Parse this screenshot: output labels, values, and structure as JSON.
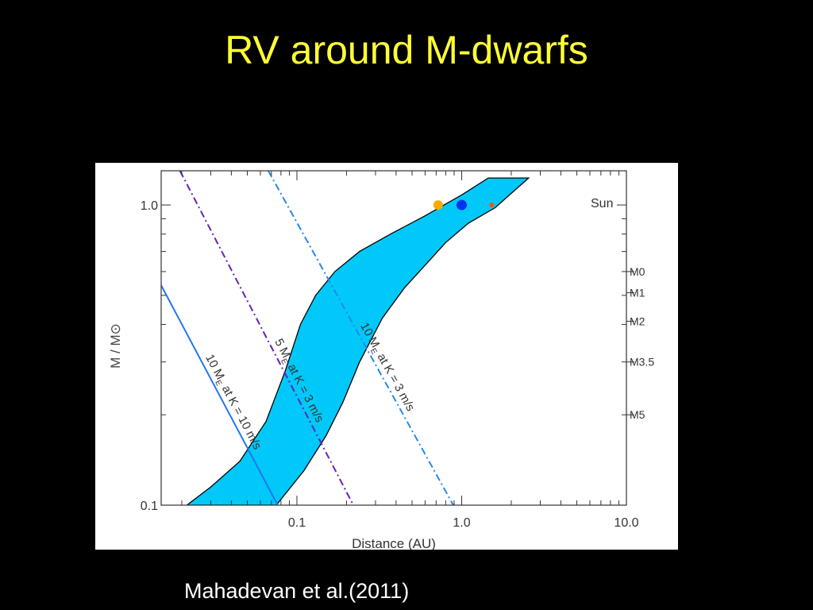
{
  "slide": {
    "title": "RV around M-dwarfs",
    "citation": "Mahadevan et al.(2011)",
    "title_color": "#ffff33",
    "background": "#000000"
  },
  "chart_data": {
    "type": "area",
    "xlabel": "Distance (AU)",
    "ylabel": "M / M⊙",
    "x_scale": "log",
    "y_scale": "log",
    "xlim": [
      0.015,
      10.0
    ],
    "ylim": [
      0.1,
      1.3
    ],
    "x_ticks": [
      {
        "value": 0.1,
        "label": "0.1"
      },
      {
        "value": 1.0,
        "label": "1.0"
      },
      {
        "value": 10.0,
        "label": "10.0"
      }
    ],
    "y_ticks": [
      {
        "value": 0.1,
        "label": "0.1"
      },
      {
        "value": 1.0,
        "label": "1.0"
      }
    ],
    "grid": false,
    "spectral_types": [
      {
        "mass": 1.0,
        "label": "Sun"
      },
      {
        "mass": 0.6,
        "label": "M0"
      },
      {
        "mass": 0.51,
        "label": "M1"
      },
      {
        "mass": 0.41,
        "label": "M2"
      },
      {
        "mass": 0.3,
        "label": "M3.5"
      },
      {
        "mass": 0.2,
        "label": "M5"
      }
    ],
    "habitable_zone": {
      "color": "#00c8f8",
      "inner": [
        {
          "x": 0.0215,
          "y": 0.1
        },
        {
          "x": 0.03,
          "y": 0.115
        },
        {
          "x": 0.045,
          "y": 0.14
        },
        {
          "x": 0.065,
          "y": 0.19
        },
        {
          "x": 0.085,
          "y": 0.28
        },
        {
          "x": 0.105,
          "y": 0.4
        },
        {
          "x": 0.13,
          "y": 0.5
        },
        {
          "x": 0.17,
          "y": 0.6
        },
        {
          "x": 0.24,
          "y": 0.7
        },
        {
          "x": 0.37,
          "y": 0.8
        },
        {
          "x": 0.6,
          "y": 0.92
        },
        {
          "x": 1.0,
          "y": 1.08
        },
        {
          "x": 1.45,
          "y": 1.23
        }
      ],
      "outer": [
        {
          "x": 2.55,
          "y": 1.23
        },
        {
          "x": 2.1,
          "y": 1.12
        },
        {
          "x": 1.6,
          "y": 0.98
        },
        {
          "x": 1.1,
          "y": 0.87
        },
        {
          "x": 0.8,
          "y": 0.75
        },
        {
          "x": 0.6,
          "y": 0.63
        },
        {
          "x": 0.45,
          "y": 0.53
        },
        {
          "x": 0.33,
          "y": 0.42
        },
        {
          "x": 0.24,
          "y": 0.3
        },
        {
          "x": 0.19,
          "y": 0.22
        },
        {
          "x": 0.15,
          "y": 0.17
        },
        {
          "x": 0.11,
          "y": 0.13
        },
        {
          "x": 0.075,
          "y": 0.1
        }
      ]
    },
    "series": [
      {
        "name": "10 M_E at K = 10 m/s",
        "color": "#2277ee",
        "dash": "solid",
        "points": [
          {
            "x": 0.015,
            "y": 0.54
          },
          {
            "x": 0.0765,
            "y": 0.1
          }
        ],
        "label_pre": "10 M",
        "label_sub": "E",
        "label_post": " at K = 10 m/s"
      },
      {
        "name": "5 M_E at K = 3 m/s",
        "color": "#6622bb",
        "dash": "dashdot",
        "points": [
          {
            "x": 0.0195,
            "y": 1.3
          },
          {
            "x": 0.22,
            "y": 0.1
          }
        ],
        "label_pre": "5 M",
        "label_sub": "E",
        "label_post": " at K = 3 m/s"
      },
      {
        "name": "10 M_E at K = 3 m/s",
        "color": "#2288ee",
        "dash": "dashdot",
        "points": [
          {
            "x": 0.067,
            "y": 1.3
          },
          {
            "x": 0.89,
            "y": 0.1
          }
        ],
        "label_pre": "10 M",
        "label_sub": "E",
        "label_post": " at K = 3 m/s"
      }
    ],
    "markers": [
      {
        "name": "Venus",
        "x": 0.72,
        "y": 1.0,
        "color": "#ffaa00",
        "size": 6
      },
      {
        "name": "Earth",
        "x": 1.0,
        "y": 1.0,
        "color": "#0033ee",
        "size": 6.5
      },
      {
        "name": "Mars",
        "x": 1.52,
        "y": 1.0,
        "color": "#ee5500",
        "size": 3
      }
    ]
  }
}
